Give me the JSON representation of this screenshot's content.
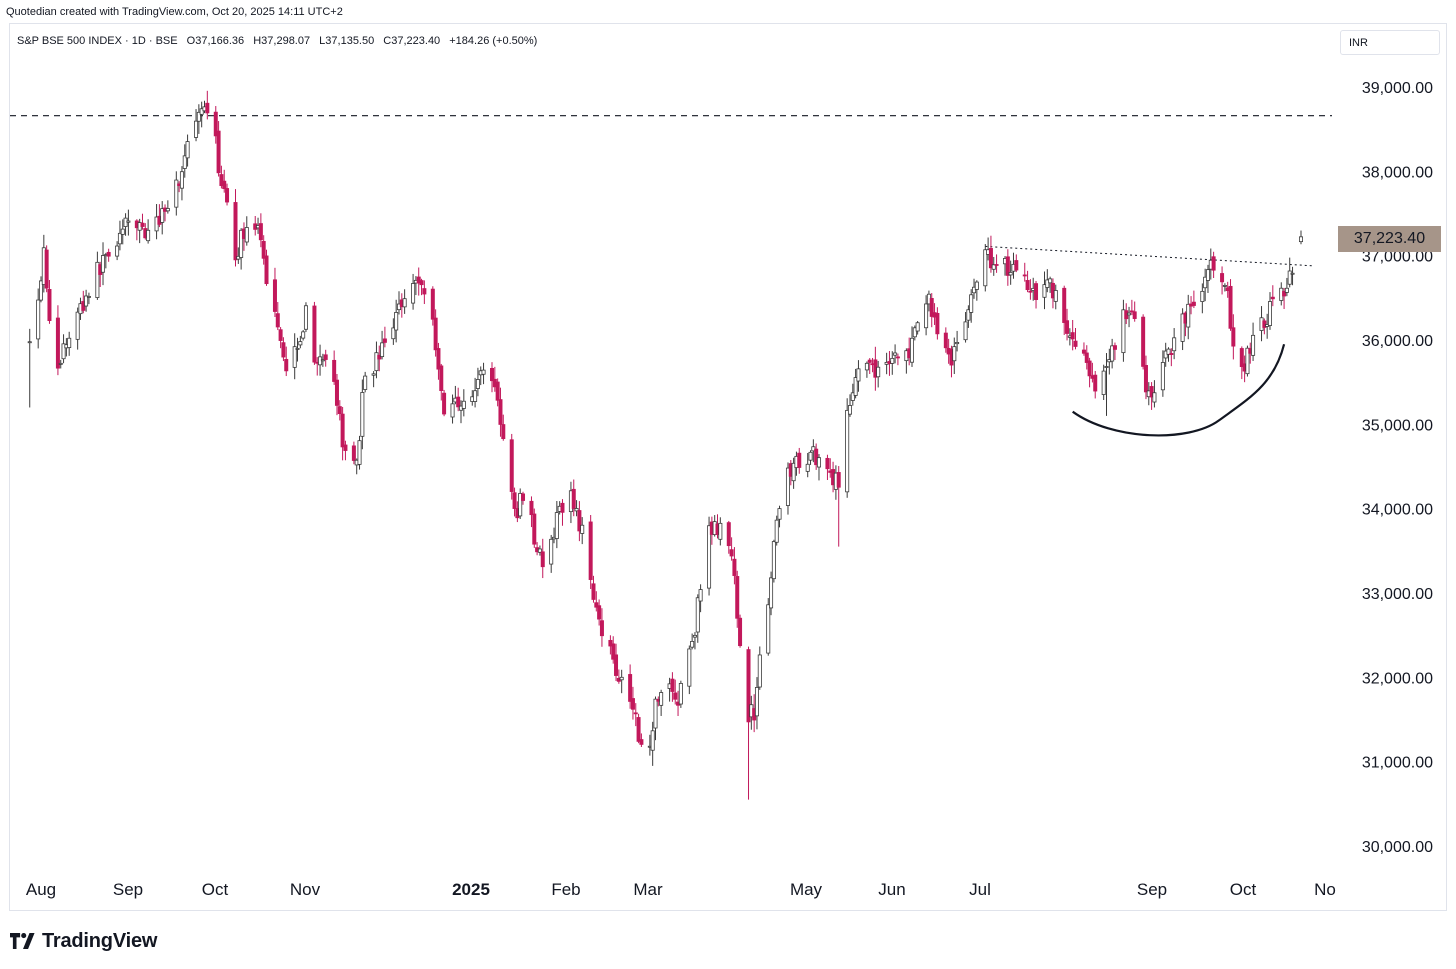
{
  "header": {
    "attribution": "Quotedian created with TradingView.com, Oct 20, 2025 14:11 UTC+2"
  },
  "legend": {
    "symbol_line": "S&P BSE 500 INDEX · 1D · BSE",
    "open": "O37,166.36",
    "high": "H37,298.07",
    "low": "L37,135.50",
    "close": "C37,223.40",
    "change": "+184.26 (+0.50%)"
  },
  "currency_button": {
    "label": "INR"
  },
  "last_price_label": "37,223.40",
  "brand": {
    "name": "TradingView"
  },
  "colors": {
    "up": "#6d6d6d",
    "down": "#c2185b",
    "wick": "#3a3a3a",
    "badge": "#a69589"
  },
  "chart_data": {
    "type": "candlestick",
    "y_axis": {
      "range": [
        29700,
        39700
      ],
      "ticks": [
        39000,
        38000,
        37000,
        36000,
        35000,
        34000,
        33000,
        32000,
        31000,
        30000
      ],
      "tick_labels": [
        "39,000.00",
        "38,000.00",
        "37,000.00",
        "36,000.00",
        "35,000.00",
        "34,000.00",
        "33,000.00",
        "32,000.00",
        "31,000.00",
        "30,000.00"
      ]
    },
    "x_axis": {
      "labels": [
        "Aug",
        "Sep",
        "Oct",
        "Nov",
        "2025",
        "Feb",
        "Mar",
        "May",
        "Jun",
        "Jul",
        "Sep",
        "Oct",
        "No"
      ]
    },
    "close_path": [
      [
        "2024-07-26",
        36100
      ],
      [
        "2024-07-29",
        36500
      ],
      [
        "2024-07-31",
        37100
      ],
      [
        "2024-08-02",
        36300
      ],
      [
        "2024-08-05",
        35600
      ],
      [
        "2024-08-07",
        35900
      ],
      [
        "2024-08-12",
        36300
      ],
      [
        "2024-08-16",
        36600
      ],
      [
        "2024-08-22",
        37000
      ],
      [
        "2024-08-28",
        37300
      ],
      [
        "2024-09-03",
        37400
      ],
      [
        "2024-09-06",
        37200
      ],
      [
        "2024-09-12",
        37600
      ],
      [
        "2024-09-17",
        37900
      ],
      [
        "2024-09-20",
        38300
      ],
      [
        "2024-09-24",
        38600
      ],
      [
        "2024-09-27",
        38700
      ],
      [
        "2024-09-30",
        38300
      ],
      [
        "2024-10-03",
        37700
      ],
      [
        "2024-10-07",
        37000
      ],
      [
        "2024-10-10",
        37300
      ],
      [
        "2024-10-14",
        37400
      ],
      [
        "2024-10-17",
        36900
      ],
      [
        "2024-10-22",
        36200
      ],
      [
        "2024-10-25",
        35700
      ],
      [
        "2024-10-29",
        36000
      ],
      [
        "2024-11-01",
        36300
      ],
      [
        "2024-11-05",
        35700
      ],
      [
        "2024-11-11",
        35600
      ],
      [
        "2024-11-14",
        34700
      ],
      [
        "2024-11-19",
        34600
      ],
      [
        "2024-11-22",
        35600
      ],
      [
        "2024-11-27",
        35800
      ],
      [
        "2024-12-02",
        36200
      ],
      [
        "2024-12-06",
        36600
      ],
      [
        "2024-12-11",
        36700
      ],
      [
        "2024-12-13",
        36600
      ],
      [
        "2024-12-17",
        36000
      ],
      [
        "2024-12-20",
        35100
      ],
      [
        "2024-12-24",
        35300
      ],
      [
        "2024-12-30",
        35300
      ],
      [
        "2025-01-03",
        35700
      ],
      [
        "2025-01-07",
        35500
      ],
      [
        "2025-01-10",
        34800
      ],
      [
        "2025-01-14",
        33900
      ],
      [
        "2025-01-17",
        34200
      ],
      [
        "2025-01-21",
        33700
      ],
      [
        "2025-01-24",
        33300
      ],
      [
        "2025-01-28",
        33700
      ],
      [
        "2025-02-01",
        34200
      ],
      [
        "2025-02-05",
        34000
      ],
      [
        "2025-02-10",
        33200
      ],
      [
        "2025-02-14",
        32600
      ],
      [
        "2025-02-18",
        32200
      ],
      [
        "2025-02-21",
        32000
      ],
      [
        "2025-02-25",
        31700
      ],
      [
        "2025-02-28",
        31200
      ],
      [
        "2025-03-03",
        31100
      ],
      [
        "2025-03-05",
        31800
      ],
      [
        "2025-03-10",
        31900
      ],
      [
        "2025-03-13",
        31700
      ],
      [
        "2025-03-19",
        32600
      ],
      [
        "2025-03-24",
        33700
      ],
      [
        "2025-03-27",
        33800
      ],
      [
        "2025-04-01",
        33400
      ],
      [
        "2025-04-04",
        32500
      ],
      [
        "2025-04-07",
        31500
      ],
      [
        "2025-04-09",
        31600
      ],
      [
        "2025-04-11",
        32300
      ],
      [
        "2025-04-15",
        33200
      ],
      [
        "2025-04-17",
        33800
      ],
      [
        "2025-04-21",
        34500
      ],
      [
        "2025-04-25",
        34500
      ],
      [
        "2025-04-29",
        34700
      ],
      [
        "2025-05-02",
        34600
      ],
      [
        "2025-05-07",
        34400
      ],
      [
        "2025-05-09",
        34200
      ],
      [
        "2025-05-12",
        35200
      ],
      [
        "2025-05-16",
        35700
      ],
      [
        "2025-05-21",
        35600
      ],
      [
        "2025-05-27",
        35800
      ],
      [
        "2025-06-02",
        35800
      ],
      [
        "2025-06-06",
        36100
      ],
      [
        "2025-06-10",
        36500
      ],
      [
        "2025-06-13",
        36100
      ],
      [
        "2025-06-18",
        35800
      ],
      [
        "2025-06-23",
        36200
      ],
      [
        "2025-06-27",
        36800
      ],
      [
        "2025-07-01",
        37000
      ],
      [
        "2025-07-07",
        36900
      ],
      [
        "2025-07-11",
        36800
      ],
      [
        "2025-07-15",
        36700
      ],
      [
        "2025-07-18",
        36600
      ],
      [
        "2025-07-23",
        36700
      ],
      [
        "2025-07-28",
        36200
      ],
      [
        "2025-07-31",
        36000
      ],
      [
        "2025-08-04",
        35800
      ],
      [
        "2025-08-08",
        35300
      ],
      [
        "2025-08-13",
        35800
      ],
      [
        "2025-08-18",
        36300
      ],
      [
        "2025-08-22",
        36200
      ],
      [
        "2025-08-26",
        35500
      ],
      [
        "2025-08-29",
        35300
      ],
      [
        "2025-09-02",
        35800
      ],
      [
        "2025-09-05",
        36000
      ],
      [
        "2025-09-10",
        36400
      ],
      [
        "2025-09-15",
        36600
      ],
      [
        "2025-09-19",
        36900
      ],
      [
        "2025-09-23",
        36700
      ],
      [
        "2025-09-26",
        36000
      ],
      [
        "2025-09-30",
        35700
      ],
      [
        "2025-10-03",
        36000
      ],
      [
        "2025-10-08",
        36300
      ],
      [
        "2025-10-13",
        36500
      ],
      [
        "2025-10-16",
        36800
      ],
      [
        "2025-10-20",
        37223.4
      ]
    ],
    "notable_extremes": [
      {
        "date": "2024-07-26",
        "value": 35200
      },
      {
        "date": "2024-09-27",
        "value": 38720
      },
      {
        "date": "2025-03-04",
        "value": 30950
      },
      {
        "date": "2025-04-07",
        "value": 30550
      },
      {
        "date": "2025-04-09",
        "value": 31800
      },
      {
        "date": "2025-05-09",
        "value": 33550
      },
      {
        "date": "2025-08-12",
        "value": 35100
      }
    ],
    "last": {
      "open": 37166.36,
      "high": 37298.07,
      "low": 37135.5,
      "close": 37223.4,
      "change": 184.26,
      "change_pct": 0.5
    },
    "annotations": [
      {
        "kind": "horizontal_dashed_line",
        "value": 38660
      },
      {
        "kind": "dotted_trendline",
        "from": [
          "2025-06-30",
          37110
        ],
        "to": [
          "2025-10-24",
          36880
        ]
      },
      {
        "kind": "arc",
        "from": [
          "2025-07-31",
          35150
        ],
        "bottom": [
          "2025-08-27",
          34950
        ],
        "to": [
          "2025-10-14",
          35950
        ]
      }
    ]
  }
}
